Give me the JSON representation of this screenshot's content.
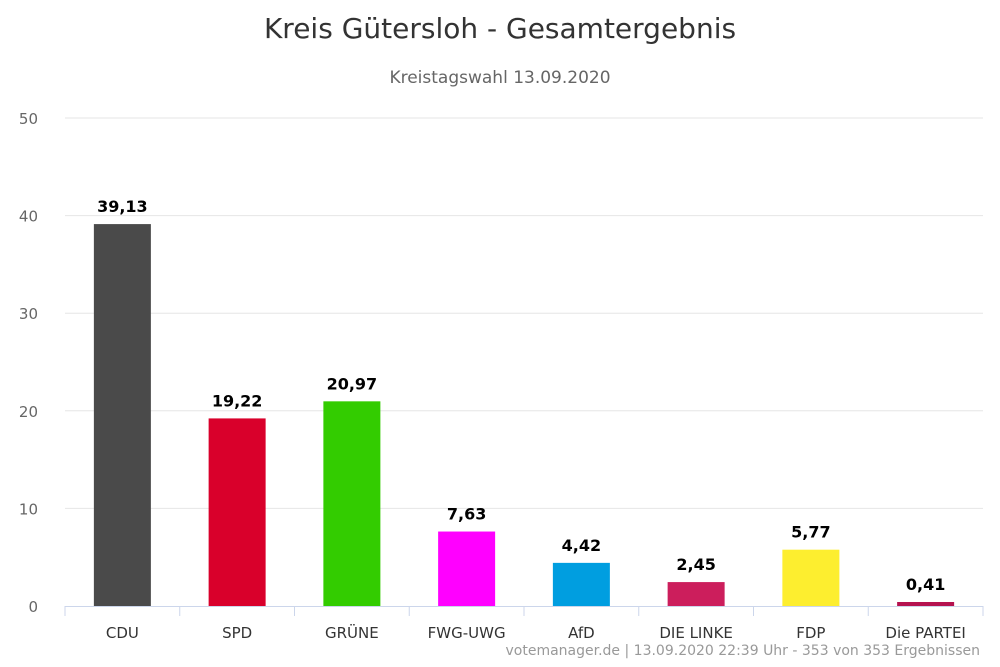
{
  "chart_data": {
    "type": "bar",
    "title": "Kreis Gütersloh - Gesamtergebnis",
    "subtitle": "Kreistagswahl 13.09.2020",
    "categories": [
      "CDU",
      "SPD",
      "GRÜNE",
      "FWG-UWG",
      "AfD",
      "DIE LINKE",
      "FDP",
      "Die PARTEI"
    ],
    "values": [
      39.13,
      19.22,
      20.97,
      7.63,
      4.42,
      2.45,
      5.77,
      0.41
    ],
    "data_labels": [
      "39,13",
      "19,22",
      "20,97",
      "7,63",
      "4,42",
      "2,45",
      "5,77",
      "0,41"
    ],
    "colors": [
      "#4a4a4a",
      "#d9002b",
      "#33cc00",
      "#ff00ff",
      "#009ee0",
      "#cc1e5c",
      "#fdee2f",
      "#b5124f"
    ],
    "ylim": [
      0,
      50
    ],
    "yticks": [
      0,
      10,
      20,
      30,
      40,
      50
    ],
    "grid": true,
    "legend": "none"
  },
  "credits": "votemanager.de | 13.09.2020 22:39 Uhr - 353 von 353 Ergebnissen"
}
